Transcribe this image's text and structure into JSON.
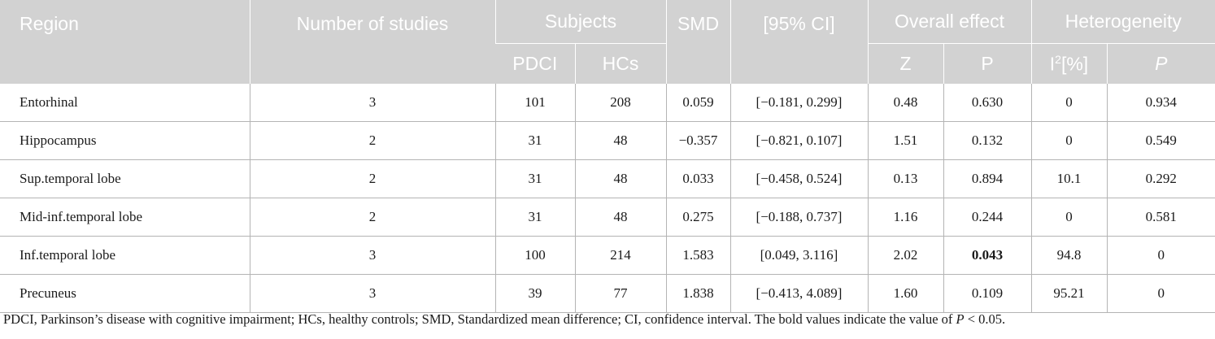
{
  "headers": {
    "region": "Region",
    "num_studies": "Number of studies",
    "subjects": "Subjects",
    "smd": "SMD",
    "ci": "[95% CI]",
    "overall_effect": "Overall effect",
    "heterogeneity": "Heterogeneity",
    "pdci": "PDCI",
    "hcs": "HCs",
    "z": "Z",
    "p": "P",
    "i2_base": "I",
    "i2_sup": "2",
    "i2_unit": "[%]",
    "p_het": "P"
  },
  "rows": [
    {
      "region": "Entorhinal",
      "studies": "3",
      "pdci": "101",
      "hcs": "208",
      "smd": "0.059",
      "ci": "[−0.181, 0.299]",
      "z": "0.48",
      "p": "0.630",
      "i2": "0",
      "p_het": "0.934"
    },
    {
      "region": "Hippocampus",
      "studies": "2",
      "pdci": "31",
      "hcs": "48",
      "smd": "−0.357",
      "ci": "[−0.821, 0.107]",
      "z": "1.51",
      "p": "0.132",
      "i2": "0",
      "p_het": "0.549"
    },
    {
      "region": "Sup.temporal lobe",
      "studies": "2",
      "pdci": "31",
      "hcs": "48",
      "smd": "0.033",
      "ci": "[−0.458, 0.524]",
      "z": "0.13",
      "p": "0.894",
      "i2": "10.1",
      "p_het": "0.292"
    },
    {
      "region": "Mid-inf.temporal lobe",
      "studies": "2",
      "pdci": "31",
      "hcs": "48",
      "smd": "0.275",
      "ci": "[−0.188, 0.737]",
      "z": "1.16",
      "p": "0.244",
      "i2": "0",
      "p_het": "0.581"
    },
    {
      "region": "Inf.temporal lobe",
      "studies": "3",
      "pdci": "100",
      "hcs": "214",
      "smd": "1.583",
      "ci": "[0.049, 3.116]",
      "z": "2.02",
      "p": "0.043",
      "i2": "94.8",
      "p_het": "0"
    },
    {
      "region": "Precuneus",
      "studies": "3",
      "pdci": "39",
      "hcs": "77",
      "smd": "1.838",
      "ci": "[−0.413, 4.089]",
      "z": "1.60",
      "p": "0.109",
      "i2": "95.21",
      "p_het": "0"
    }
  ],
  "footnote": {
    "text": "PDCI, Parkinson’s disease with cognitive impairment; HCs, healthy controls; SMD, Standardized mean difference; CI, confidence interval. The bold values indicate the value of ",
    "p_symbol": "P",
    "tail": " < 0.05."
  },
  "colors": {
    "header_bg": "#d2d2d2",
    "header_text": "#ffffff",
    "rule": "#b4b4b4"
  }
}
